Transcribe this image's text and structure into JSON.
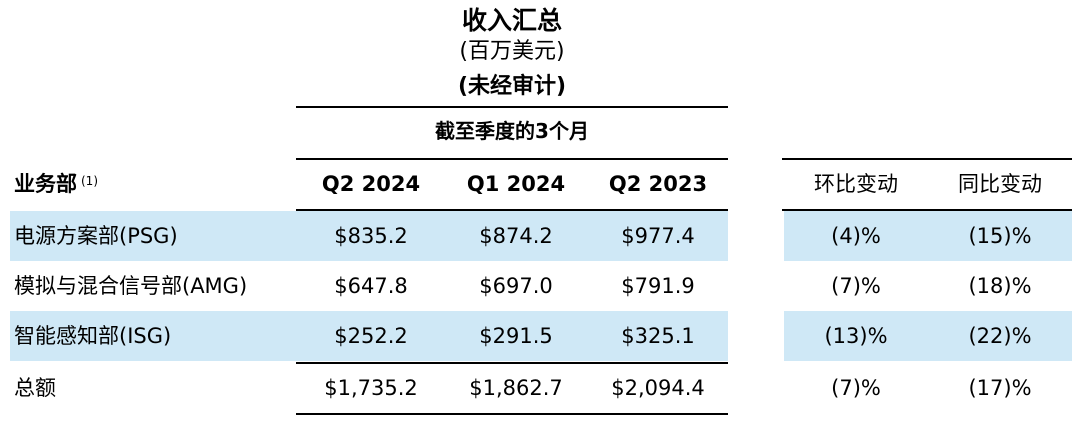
{
  "header": {
    "title": "收入汇总",
    "subtitle": "(百万美元)",
    "note": "(未经审计)",
    "period": "截至季度的3个月"
  },
  "columns": {
    "segment": "业务部",
    "segment_footnote": "(1)",
    "q2_2024": "Q2 2024",
    "q1_2024": "Q1 2024",
    "q2_2023": "Q2 2023",
    "qoq": "环比变动",
    "yoy": "同比变动"
  },
  "rows": [
    {
      "segment": "电源方案部(PSG)",
      "q2_2024": "$835.2",
      "q1_2024": "$874.2",
      "q2_2023": "$977.4",
      "qoq": "(4)%",
      "yoy": "(15)%"
    },
    {
      "segment": "模拟与混合信号部(AMG)",
      "q2_2024": "$647.8",
      "q1_2024": "$697.0",
      "q2_2023": "$791.9",
      "qoq": "(7)%",
      "yoy": "(18)%"
    },
    {
      "segment": "智能感知部(ISG)",
      "q2_2024": "$252.2",
      "q1_2024": "$291.5",
      "q2_2023": "$325.1",
      "qoq": "(13)%",
      "yoy": "(22)%"
    },
    {
      "segment": "总额",
      "q2_2024": "$1,735.2",
      "q1_2024": "$1,862.7",
      "q2_2023": "$2,094.4",
      "qoq": "(7)%",
      "yoy": "(17)%"
    }
  ],
  "colors": {
    "row_shade": "#cfe8f6",
    "rule": "#000000"
  }
}
